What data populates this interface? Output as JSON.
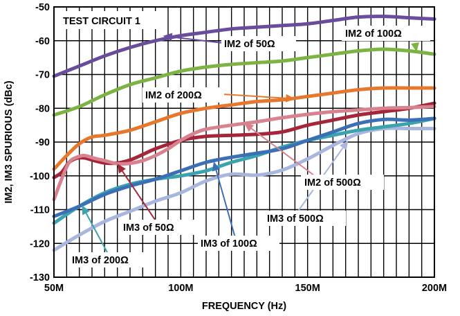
{
  "chart_data": {
    "type": "line",
    "title": "TEST CIRCUIT 1",
    "xlabel": "FREQUENCY (Hz)",
    "ylabel": "IM2, IM3 SPURIOUS (dBc)",
    "xlim": [
      50,
      200
    ],
    "ylim": [
      -130,
      -50
    ],
    "x_ticks": [
      50,
      100,
      150,
      200
    ],
    "x_tick_labels": [
      "50M",
      "100M",
      "150M",
      "200M"
    ],
    "y_ticks": [
      -130,
      -120,
      -110,
      -100,
      -90,
      -80,
      -70,
      -60,
      -50
    ],
    "y_tick_labels": [
      "-130",
      "-120",
      "-110",
      "-100",
      "-90",
      "-80",
      "-70",
      "-60",
      "-50"
    ],
    "grid": true,
    "series": [
      {
        "name": "IM2 of 50Ω",
        "color": "#6a4c9c",
        "x": [
          50,
          60,
          70,
          80,
          90,
          100,
          110,
          120,
          130,
          140,
          150,
          160,
          170,
          180,
          190,
          200
        ],
        "y": [
          -70.5,
          -67.5,
          -64.5,
          -62,
          -60,
          -58.5,
          -57.5,
          -56.5,
          -56,
          -55.5,
          -55,
          -54,
          -53,
          -52.8,
          -53.2,
          -53.6
        ]
      },
      {
        "name": "IM2 of 100Ω",
        "color": "#7cb342",
        "x": [
          50,
          60,
          70,
          80,
          90,
          100,
          110,
          120,
          130,
          140,
          150,
          160,
          170,
          180,
          190,
          200
        ],
        "y": [
          -82,
          -79.5,
          -76,
          -73,
          -71,
          -69,
          -67.8,
          -67,
          -66.5,
          -66,
          -65,
          -64,
          -63,
          -62.5,
          -63,
          -64
        ]
      },
      {
        "name": "IM2 of 200Ω",
        "color": "#e8772e",
        "x": [
          50,
          55,
          60,
          65,
          70,
          80,
          90,
          100,
          110,
          120,
          130,
          140,
          150,
          160,
          170,
          180,
          190,
          200
        ],
        "y": [
          -98,
          -94,
          -90.5,
          -88.5,
          -88,
          -86.5,
          -84,
          -81.5,
          -80,
          -79,
          -78,
          -77.5,
          -76.5,
          -75.5,
          -74.5,
          -74,
          -74,
          -74
        ]
      },
      {
        "name": "IM2 of 500Ω",
        "color": "#d9828f",
        "x": [
          50,
          53,
          56,
          59,
          62,
          66,
          70,
          75,
          80,
          85,
          90,
          95,
          100,
          105,
          110,
          120,
          130,
          140,
          150,
          160,
          170,
          180,
          190,
          200
        ],
        "y": [
          -107,
          -101,
          -96,
          -94.5,
          -94,
          -94.8,
          -95.5,
          -96.4,
          -96.3,
          -95.5,
          -94,
          -92,
          -89.5,
          -87.5,
          -86.2,
          -85,
          -84,
          -82.8,
          -81.8,
          -81,
          -80.5,
          -80,
          -79.8,
          -79.5
        ]
      },
      {
        "name": "IM3 of 50Ω",
        "color": "#a5263a",
        "x": [
          50,
          53,
          56,
          59,
          62,
          65,
          70,
          75,
          80,
          85,
          90,
          100,
          110,
          120,
          130,
          140,
          150,
          160,
          170,
          180,
          190,
          200
        ],
        "y": [
          -100.5,
          -99,
          -96,
          -94.8,
          -94.7,
          -95.3,
          -96.2,
          -96.2,
          -95.3,
          -93.7,
          -92,
          -89.5,
          -88.3,
          -88,
          -87.7,
          -87,
          -85,
          -83.5,
          -82,
          -81,
          -80,
          -78.5
        ]
      },
      {
        "name": "IM3 of 100Ω",
        "color": "#3b6fb6",
        "x": [
          50,
          60,
          70,
          80,
          90,
          100,
          110,
          120,
          130,
          140,
          150,
          160,
          170,
          180,
          190,
          200
        ],
        "y": [
          -112,
          -109,
          -105.5,
          -103,
          -101,
          -98.5,
          -96,
          -94.5,
          -93.3,
          -92,
          -89.5,
          -87,
          -84.5,
          -83.3,
          -83.5,
          -83
        ]
      },
      {
        "name": "IM3 of 200Ω",
        "color": "#3aa3ad",
        "x": [
          50,
          60,
          70,
          80,
          90,
          100,
          110,
          120,
          130,
          140,
          150,
          160,
          170,
          180,
          190,
          200
        ],
        "y": [
          -114,
          -109,
          -105,
          -102.5,
          -101,
          -100,
          -98.5,
          -96,
          -94,
          -91.5,
          -89.5,
          -88,
          -86.5,
          -85.5,
          -84.5,
          -83
        ]
      },
      {
        "name": "IM3 of 500Ω",
        "color": "#a8b6de",
        "x": [
          50,
          60,
          70,
          80,
          90,
          100,
          110,
          120,
          130,
          140,
          150,
          160,
          170,
          180,
          190,
          200
        ],
        "y": [
          -122,
          -117.5,
          -113.5,
          -110.5,
          -107.5,
          -105,
          -101.5,
          -99.5,
          -99.8,
          -98.3,
          -95,
          -91,
          -87.5,
          -86,
          -86,
          -86
        ]
      }
    ],
    "annotations": [
      {
        "text": "TEST CIRCUIT 1"
      },
      {
        "text": "IM2 of 50Ω"
      },
      {
        "text": "IM2 of 100Ω"
      },
      {
        "text": "IM2 of 200Ω"
      },
      {
        "text": "IM2 of 500Ω"
      },
      {
        "text": "IM3 of 50Ω"
      },
      {
        "text": "IM3 of 100Ω"
      },
      {
        "text": "IM3 of 200Ω"
      },
      {
        "text": "IM3 of 500Ω"
      }
    ]
  }
}
